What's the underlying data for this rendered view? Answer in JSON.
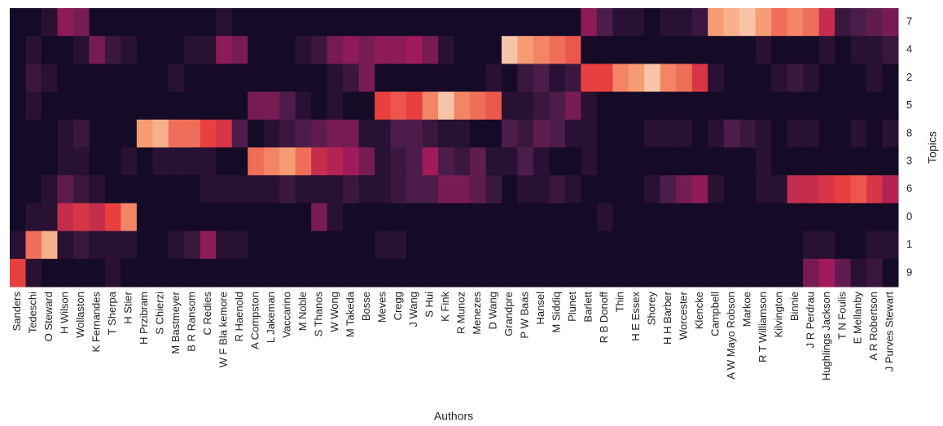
{
  "chart_data": {
    "type": "heatmap",
    "x_label": "Authors",
    "y_label": "Topics",
    "colormap": [
      "#03051a",
      "#4c1d4b",
      "#a11a5b",
      "#e83f3f",
      "#f69c73",
      "#faebdd"
    ],
    "vlim": [
      0,
      1
    ],
    "categories": [
      "Sanders",
      "Tedeschi",
      "O Steward",
      "H Wilson",
      "Wollaston",
      "K Fernandes",
      "T Sherpa",
      "H Stier",
      "H Przibram",
      "S Chierzi",
      "M Bastmeyer",
      "B R Ransom",
      "C Redies",
      "W F Bla kemore",
      "R Haenold",
      "A Compston",
      "L Jakeman",
      "Vaccarino",
      "M Noble",
      "S Thanos",
      "W Wong",
      "M Takeda",
      "Bosse",
      "Meves",
      "Cregg",
      "J Wang",
      "S Hui",
      "K Fink",
      "R Munoz",
      "Menezes",
      "D Wang",
      "Grandpre",
      "P W Baas",
      "Hansel",
      "M Siddiq",
      "Plunet",
      "Barlett",
      "R B Donoff",
      "Thin",
      "H E Essex",
      "Shorey",
      "H H Barber",
      "Worcester",
      "Klencke",
      "Campbell",
      "A W Mayo Robson",
      "Markoe",
      "R T Williamson",
      "Kilvington",
      "Binnie",
      "J R Perdrau",
      "Hughlings Jackson",
      "T N Foulis",
      "E Mellanby",
      "A R Robertson",
      "J Purves Stewart"
    ],
    "series": [
      {
        "name": "7",
        "values": [
          0.05,
          0.05,
          0.1,
          0.35,
          0.3,
          0.05,
          0.05,
          0.05,
          0.05,
          0.05,
          0.05,
          0.05,
          0.05,
          0.1,
          0.05,
          0.05,
          0.05,
          0.05,
          0.05,
          0.05,
          0.05,
          0.05,
          0.05,
          0.05,
          0.05,
          0.05,
          0.05,
          0.05,
          0.05,
          0.05,
          0.05,
          0.05,
          0.05,
          0.05,
          0.05,
          0.05,
          0.35,
          0.2,
          0.1,
          0.1,
          0.05,
          0.1,
          0.1,
          0.15,
          0.8,
          0.85,
          0.9,
          0.8,
          0.7,
          0.75,
          0.7,
          0.5,
          0.15,
          0.2,
          0.25,
          0.3
        ]
      },
      {
        "name": "4",
        "values": [
          0.05,
          0.1,
          0.05,
          0.05,
          0.1,
          0.3,
          0.15,
          0.1,
          0.05,
          0.05,
          0.05,
          0.1,
          0.1,
          0.35,
          0.3,
          0.05,
          0.05,
          0.05,
          0.1,
          0.15,
          0.3,
          0.35,
          0.3,
          0.35,
          0.35,
          0.4,
          0.3,
          0.1,
          0.05,
          0.05,
          0.05,
          0.9,
          0.8,
          0.75,
          0.7,
          0.65,
          0.05,
          0.05,
          0.05,
          0.05,
          0.05,
          0.05,
          0.05,
          0.05,
          0.05,
          0.05,
          0.05,
          0.1,
          0.05,
          0.05,
          0.05,
          0.1,
          0.05,
          0.1,
          0.1,
          0.15
        ]
      },
      {
        "name": "2",
        "values": [
          0.05,
          0.15,
          0.1,
          0.05,
          0.05,
          0.05,
          0.05,
          0.05,
          0.05,
          0.05,
          0.1,
          0.05,
          0.05,
          0.05,
          0.05,
          0.05,
          0.05,
          0.05,
          0.05,
          0.05,
          0.1,
          0.15,
          0.3,
          0.05,
          0.05,
          0.05,
          0.05,
          0.05,
          0.05,
          0.05,
          0.1,
          0.05,
          0.15,
          0.2,
          0.1,
          0.15,
          0.6,
          0.6,
          0.75,
          0.8,
          0.9,
          0.75,
          0.7,
          0.55,
          0.1,
          0.05,
          0.05,
          0.05,
          0.1,
          0.15,
          0.1,
          0.05,
          0.05,
          0.05,
          0.1,
          0.05
        ]
      },
      {
        "name": "5",
        "values": [
          0.05,
          0.1,
          0.05,
          0.05,
          0.05,
          0.05,
          0.05,
          0.05,
          0.05,
          0.05,
          0.05,
          0.05,
          0.05,
          0.05,
          0.05,
          0.3,
          0.3,
          0.2,
          0.1,
          0.05,
          0.1,
          0.05,
          0.05,
          0.6,
          0.65,
          0.6,
          0.75,
          0.9,
          0.75,
          0.7,
          0.65,
          0.1,
          0.1,
          0.15,
          0.2,
          0.3,
          0.1,
          0.05,
          0.05,
          0.05,
          0.05,
          0.05,
          0.05,
          0.05,
          0.05,
          0.05,
          0.05,
          0.05,
          0.05,
          0.05,
          0.05,
          0.05,
          0.05,
          0.05,
          0.05,
          0.05
        ]
      },
      {
        "name": "8",
        "values": [
          0.05,
          0.05,
          0.05,
          0.1,
          0.15,
          0.05,
          0.05,
          0.05,
          0.8,
          0.85,
          0.7,
          0.7,
          0.6,
          0.55,
          0.2,
          0.05,
          0.1,
          0.15,
          0.2,
          0.25,
          0.3,
          0.3,
          0.1,
          0.1,
          0.2,
          0.2,
          0.15,
          0.1,
          0.1,
          0.05,
          0.05,
          0.2,
          0.15,
          0.25,
          0.2,
          0.1,
          0.1,
          0.05,
          0.05,
          0.05,
          0.1,
          0.1,
          0.1,
          0.05,
          0.1,
          0.2,
          0.15,
          0.1,
          0.05,
          0.1,
          0.1,
          0.05,
          0.05,
          0.1,
          0.05,
          0.1
        ]
      },
      {
        "name": "3",
        "values": [
          0.05,
          0.05,
          0.05,
          0.1,
          0.1,
          0.05,
          0.05,
          0.1,
          0.05,
          0.1,
          0.1,
          0.1,
          0.1,
          0.05,
          0.05,
          0.7,
          0.75,
          0.8,
          0.7,
          0.5,
          0.45,
          0.4,
          0.3,
          0.1,
          0.15,
          0.2,
          0.4,
          0.2,
          0.15,
          0.25,
          0.1,
          0.1,
          0.2,
          0.1,
          0.05,
          0.05,
          0.1,
          0.05,
          0.05,
          0.05,
          0.05,
          0.05,
          0.05,
          0.05,
          0.05,
          0.05,
          0.05,
          0.1,
          0.05,
          0.05,
          0.05,
          0.05,
          0.05,
          0.05,
          0.05,
          0.05
        ]
      },
      {
        "name": "6",
        "values": [
          0.05,
          0.05,
          0.1,
          0.25,
          0.15,
          0.1,
          0.05,
          0.05,
          0.05,
          0.05,
          0.05,
          0.05,
          0.1,
          0.1,
          0.1,
          0.1,
          0.1,
          0.15,
          0.1,
          0.1,
          0.1,
          0.15,
          0.1,
          0.1,
          0.15,
          0.2,
          0.2,
          0.3,
          0.3,
          0.25,
          0.15,
          0.05,
          0.1,
          0.1,
          0.15,
          0.1,
          0.05,
          0.05,
          0.05,
          0.05,
          0.1,
          0.2,
          0.3,
          0.35,
          0.1,
          0.05,
          0.05,
          0.1,
          0.1,
          0.5,
          0.5,
          0.55,
          0.6,
          0.65,
          0.55,
          0.45
        ]
      },
      {
        "name": "0",
        "values": [
          0.05,
          0.1,
          0.1,
          0.5,
          0.55,
          0.5,
          0.6,
          0.75,
          0.05,
          0.05,
          0.05,
          0.05,
          0.05,
          0.05,
          0.05,
          0.05,
          0.05,
          0.05,
          0.05,
          0.3,
          0.1,
          0.05,
          0.05,
          0.05,
          0.05,
          0.05,
          0.05,
          0.05,
          0.05,
          0.05,
          0.05,
          0.05,
          0.05,
          0.05,
          0.05,
          0.05,
          0.05,
          0.1,
          0.05,
          0.05,
          0.05,
          0.05,
          0.05,
          0.05,
          0.05,
          0.05,
          0.05,
          0.05,
          0.05,
          0.05,
          0.05,
          0.05,
          0.05,
          0.05,
          0.05,
          0.05
        ]
      },
      {
        "name": "1",
        "values": [
          0.1,
          0.7,
          0.85,
          0.1,
          0.15,
          0.1,
          0.1,
          0.1,
          0.05,
          0.05,
          0.1,
          0.15,
          0.35,
          0.1,
          0.1,
          0.05,
          0.05,
          0.05,
          0.05,
          0.05,
          0.05,
          0.05,
          0.05,
          0.1,
          0.1,
          0.05,
          0.05,
          0.05,
          0.05,
          0.05,
          0.05,
          0.05,
          0.05,
          0.05,
          0.05,
          0.05,
          0.05,
          0.05,
          0.05,
          0.05,
          0.05,
          0.05,
          0.05,
          0.05,
          0.05,
          0.05,
          0.05,
          0.05,
          0.05,
          0.05,
          0.1,
          0.1,
          0.05,
          0.05,
          0.1,
          0.1
        ]
      },
      {
        "name": "9",
        "values": [
          0.6,
          0.1,
          0.05,
          0.05,
          0.05,
          0.05,
          0.1,
          0.05,
          0.05,
          0.05,
          0.05,
          0.05,
          0.05,
          0.05,
          0.05,
          0.05,
          0.05,
          0.05,
          0.05,
          0.05,
          0.05,
          0.05,
          0.05,
          0.05,
          0.05,
          0.05,
          0.05,
          0.05,
          0.05,
          0.05,
          0.05,
          0.05,
          0.05,
          0.05,
          0.05,
          0.05,
          0.05,
          0.05,
          0.05,
          0.05,
          0.05,
          0.05,
          0.05,
          0.05,
          0.05,
          0.05,
          0.05,
          0.05,
          0.05,
          0.05,
          0.3,
          0.4,
          0.25,
          0.1,
          0.15,
          0.05
        ]
      }
    ]
  }
}
